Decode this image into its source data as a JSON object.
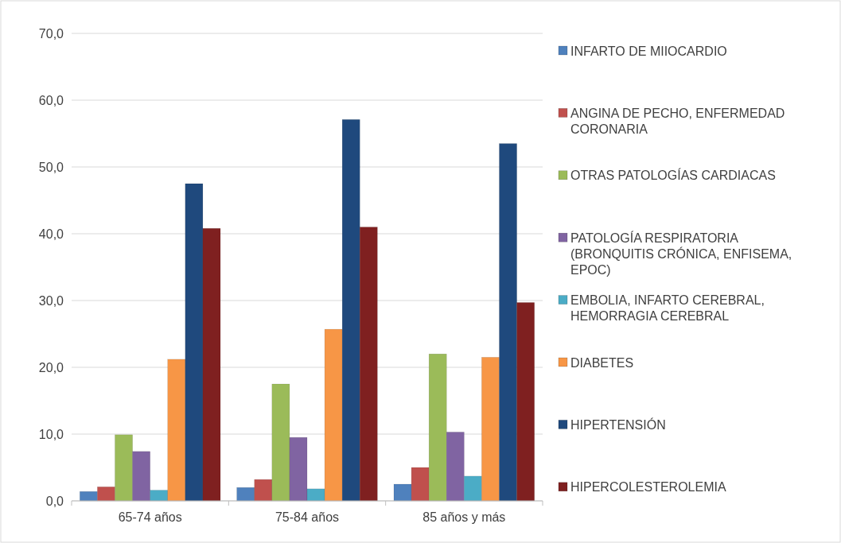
{
  "chart_data": {
    "type": "bar",
    "categories": [
      "65-74 años",
      "75-84 años",
      "85 años y más"
    ],
    "series": [
      {
        "name": "INFARTO DE MIIOCARDIO",
        "color": "#4f81bd",
        "values": [
          1.4,
          2.0,
          2.5
        ]
      },
      {
        "name": "ANGINA DE PECHO, ENFERMEDAD CORONARIA",
        "color": "#c0504d",
        "values": [
          2.1,
          3.2,
          5.0
        ]
      },
      {
        "name": "OTRAS PATOLOGÍAS CARDIACAS",
        "color": "#9bbb59",
        "values": [
          9.9,
          17.5,
          22.0
        ]
      },
      {
        "name": "PATOLOGÍA RESPIRATORIA (BRONQUITIS CRÓNICA, ENFISEMA, EPOC)",
        "color": "#8064a2",
        "values": [
          7.4,
          9.5,
          10.3
        ]
      },
      {
        "name": "EMBOLIA, INFARTO CEREBRAL, HEMORRAGIA CEREBRAL",
        "color": "#4bacc6",
        "values": [
          1.6,
          1.8,
          3.7
        ]
      },
      {
        "name": "DIABETES",
        "color": "#f79646",
        "values": [
          21.2,
          25.7,
          21.5
        ]
      },
      {
        "name": "HIPERTENSIÓN",
        "color": "#1f497d",
        "values": [
          47.5,
          57.1,
          53.5
        ]
      },
      {
        "name": "HIPERCOLESTEROLEMIA",
        "color": "#7f2020",
        "values": [
          40.8,
          41.0,
          29.7
        ]
      }
    ],
    "ylim": [
      0,
      70
    ],
    "yticks": [
      {
        "value": 0,
        "label": "0,0"
      },
      {
        "value": 10,
        "label": "10,0"
      },
      {
        "value": 20,
        "label": "20,0"
      },
      {
        "value": 30,
        "label": "30,0"
      },
      {
        "value": 40,
        "label": "40,0"
      },
      {
        "value": 50,
        "label": "50,0"
      },
      {
        "value": 60,
        "label": "60,0"
      },
      {
        "value": 70,
        "label": "70,0"
      }
    ],
    "grid": "y",
    "legend": "right"
  }
}
